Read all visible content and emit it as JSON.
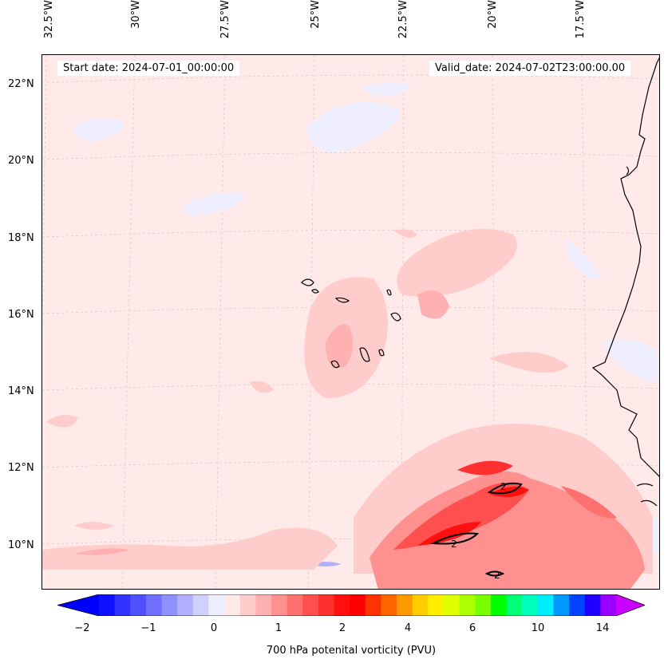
{
  "header": {
    "start_date": "Start date: 2024-07-01_00:00:00",
    "valid_date": "Valid_date: 2024-07-02T23:00:00.00"
  },
  "map": {
    "longitude_labels": [
      "32.5°W",
      "30°W",
      "27.5°W",
      "25°W",
      "22.5°W",
      "20°W",
      "17.5°W"
    ],
    "latitude_labels": [
      "22°N",
      "20°N",
      "18°N",
      "16°N",
      "14°N",
      "12°N",
      "10°N"
    ],
    "contour_labels": [
      "2",
      "2",
      "2"
    ],
    "background_color": "#ffe9e9",
    "coastline_color": "#000000"
  },
  "colorbar": {
    "title": "700 hPa potenital vorticity (PVU)",
    "tick_labels": [
      "−2",
      "−1",
      "0",
      "1",
      "2",
      "4",
      "6",
      "10",
      "14"
    ],
    "colors": [
      "#1010ff",
      "#3333ff",
      "#5050ff",
      "#7070ff",
      "#9090ff",
      "#b0b0ff",
      "#d0d0ff",
      "#eeeeff",
      "#ffe9e9",
      "#ffcccc",
      "#ffb0b0",
      "#ff9090",
      "#ff7070",
      "#ff5050",
      "#ff3030",
      "#ff1010",
      "#ff0000",
      "#ff3300",
      "#ff6600",
      "#ff9900",
      "#ffcc00",
      "#ffee00",
      "#ddff00",
      "#aaff00",
      "#77ff00",
      "#00ff00",
      "#00ff77",
      "#00ffbb",
      "#00eeff",
      "#0099ff",
      "#0044ff",
      "#2200ff",
      "#9900ff"
    ],
    "under_color": "#0000ff",
    "over_color": "#cc00ff"
  }
}
